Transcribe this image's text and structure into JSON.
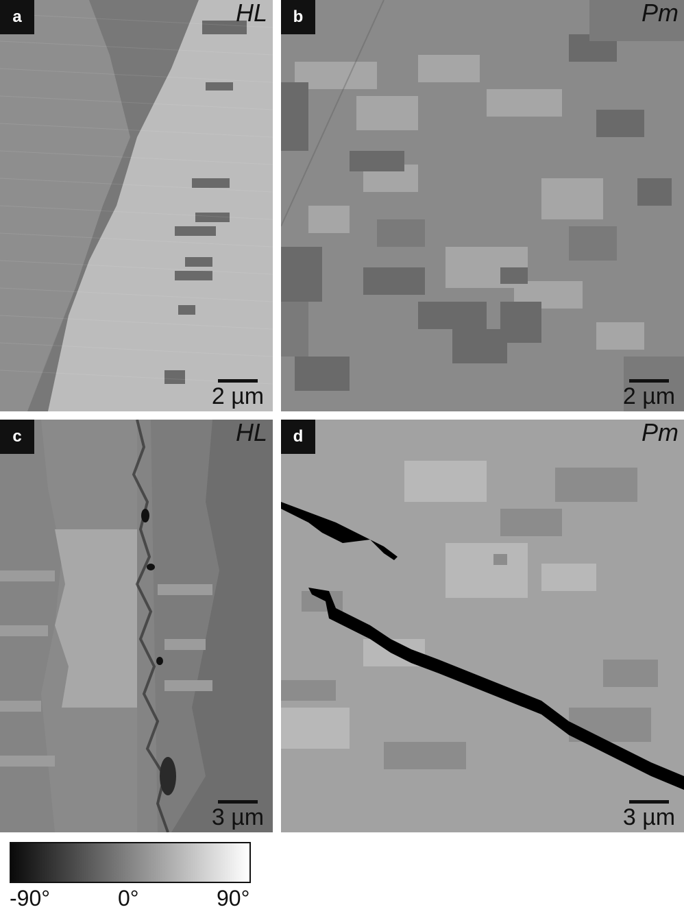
{
  "panels": [
    {
      "id": "a",
      "letter": "a",
      "tag": "HL",
      "scale": "2 µm"
    },
    {
      "id": "b",
      "letter": "b",
      "tag": "Pm",
      "scale": "2 µm"
    },
    {
      "id": "c",
      "letter": "c",
      "tag": "HL",
      "scale": "3 µm"
    },
    {
      "id": "d",
      "letter": "d",
      "tag": "Pm",
      "scale": "3 µm"
    }
  ],
  "colorbar": {
    "ticks": [
      "-90°",
      "0°",
      "90°"
    ],
    "colors": {
      "min": "#0a0a0a",
      "max": "#ffffff"
    }
  }
}
